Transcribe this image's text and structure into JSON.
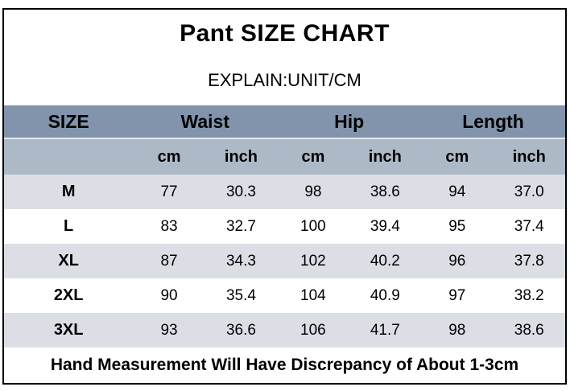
{
  "title": "Pant SIZE CHART",
  "subtitle": "EXPLAIN:UNIT/CM",
  "colors": {
    "outer_border": "#000000",
    "group_header_bg": "#8294AC",
    "sub_header_bg": "#AEB9C7",
    "row_alt_bg": "#DBDFE5",
    "row_bg": "#FFFFFF",
    "text": "#000000"
  },
  "chart_data": {
    "type": "table",
    "title": "Pant SIZE CHART",
    "unit_note": "EXPLAIN:UNIT/CM",
    "column_groups": [
      "SIZE",
      "Waist",
      "Hip",
      "Length"
    ],
    "sub_columns": [
      "cm",
      "inch",
      "cm",
      "inch",
      "cm",
      "inch"
    ],
    "rows": [
      {
        "size": "M",
        "values": [
          "77",
          "30.3",
          "98",
          "38.6",
          "94",
          "37.0"
        ]
      },
      {
        "size": "L",
        "values": [
          "83",
          "32.7",
          "100",
          "39.4",
          "95",
          "37.4"
        ]
      },
      {
        "size": "XL",
        "values": [
          "87",
          "34.3",
          "102",
          "40.2",
          "96",
          "37.8"
        ]
      },
      {
        "size": "2XL",
        "values": [
          "90",
          "35.4",
          "104",
          "40.9",
          "97",
          "38.2"
        ]
      },
      {
        "size": "3XL",
        "values": [
          "93",
          "36.6",
          "106",
          "41.7",
          "98",
          "38.6"
        ]
      }
    ],
    "footnote": "Hand Measurement Will Have Discrepancy of About 1-3cm"
  }
}
